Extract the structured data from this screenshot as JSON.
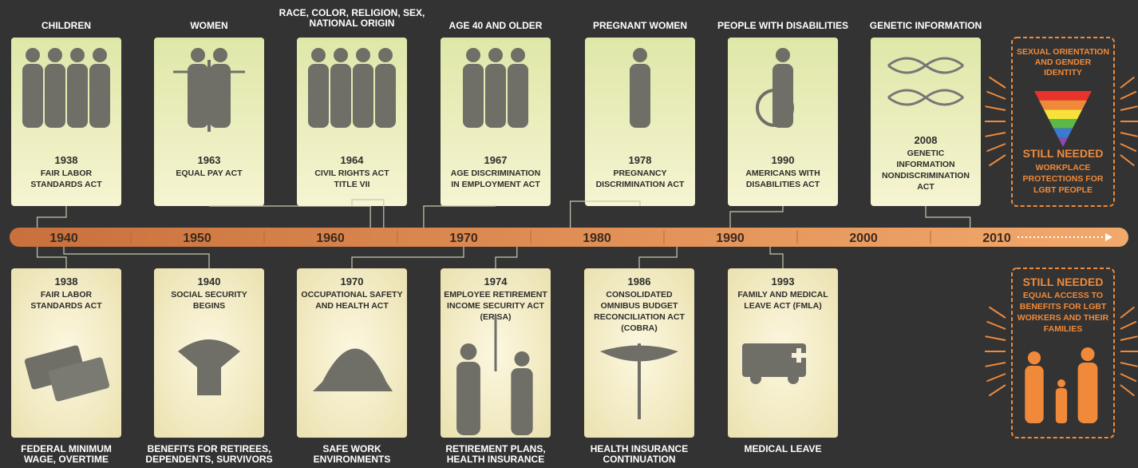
{
  "top": [
    {
      "header": [
        "CHILDREN"
      ],
      "year": "1938",
      "title": [
        "FAIR LABOR",
        "STANDARDS ACT"
      ]
    },
    {
      "header": [
        "WOMEN"
      ],
      "year": "1963",
      "title": [
        "EQUAL PAY ACT"
      ]
    },
    {
      "header": [
        "RACE, COLOR, RELIGION, SEX,",
        "NATIONAL ORIGIN"
      ],
      "year": "1964",
      "title": [
        "CIVIL RIGHTS ACT",
        "TITLE VII"
      ]
    },
    {
      "header": [
        "AGE 40 AND OLDER"
      ],
      "year": "1967",
      "title": [
        "AGE DISCRIMINATION",
        "IN EMPLOYMENT ACT"
      ]
    },
    {
      "header": [
        "PREGNANT WOMEN"
      ],
      "year": "1978",
      "title": [
        "PREGNANCY",
        "DISCRIMINATION ACT"
      ]
    },
    {
      "header": [
        "PEOPLE WITH DISABILITIES"
      ],
      "year": "1990",
      "title": [
        "AMERICANS WITH",
        "DISABILITIES ACT"
      ]
    },
    {
      "header": [
        "GENETIC INFORMATION"
      ],
      "year": "2008",
      "title": [
        "GENETIC",
        "INFORMATION",
        "NONDISCRIMINATION",
        "ACT"
      ]
    }
  ],
  "timeline": {
    "years": [
      "1940",
      "1950",
      "1960",
      "1970",
      "1980",
      "1990",
      "2000",
      "2010"
    ]
  },
  "bottom": [
    {
      "year": "1938",
      "title": [
        "FAIR LABOR",
        "STANDARDS ACT"
      ],
      "caption": [
        "FEDERAL MINIMUM",
        "WAGE, OVERTIME"
      ]
    },
    {
      "year": "1940",
      "title": [
        "SOCIAL SECURITY",
        "BEGINS"
      ],
      "caption": [
        "BENEFITS FOR RETIREES,",
        "DEPENDENTS, SURVIVORS"
      ]
    },
    {
      "year": "1970",
      "title": [
        "OCCUPATIONAL SAFETY",
        "AND HEALTH ACT"
      ],
      "caption": [
        "SAFE WORK",
        "ENVIRONMENTS"
      ]
    },
    {
      "year": "1974",
      "title": [
        "EMPLOYEE RETIREMENT",
        "INCOME SECURITY ACT",
        "(ERISA)"
      ],
      "caption": [
        "RETIREMENT PLANS,",
        "HEALTH INSURANCE"
      ]
    },
    {
      "year": "1986",
      "title": [
        "CONSOLIDATED",
        "OMNIBUS BUDGET",
        "RECONCILIATION ACT",
        "(COBRA)"
      ],
      "caption": [
        "HEALTH INSURANCE",
        "CONTINUATION"
      ]
    },
    {
      "year": "1993",
      "title": [
        "FAMILY AND MEDICAL",
        "LEAVE ACT (FMLA)"
      ],
      "caption": [
        "MEDICAL LEAVE"
      ]
    }
  ],
  "future_top": {
    "title": [
      "SEXUAL ORIENTATION",
      "AND GENDER",
      "IDENTITY"
    ],
    "status": "STILL NEEDED",
    "detail": [
      "WORKPLACE",
      "PROTECTIONS FOR",
      "LGBT PEOPLE"
    ]
  },
  "future_bottom": {
    "status": "STILL NEEDED",
    "detail": [
      "EQUAL ACCESS TO",
      "BENEFITS FOR LGBT",
      "WORKERS AND THEIR",
      "FAMILIES"
    ]
  }
}
